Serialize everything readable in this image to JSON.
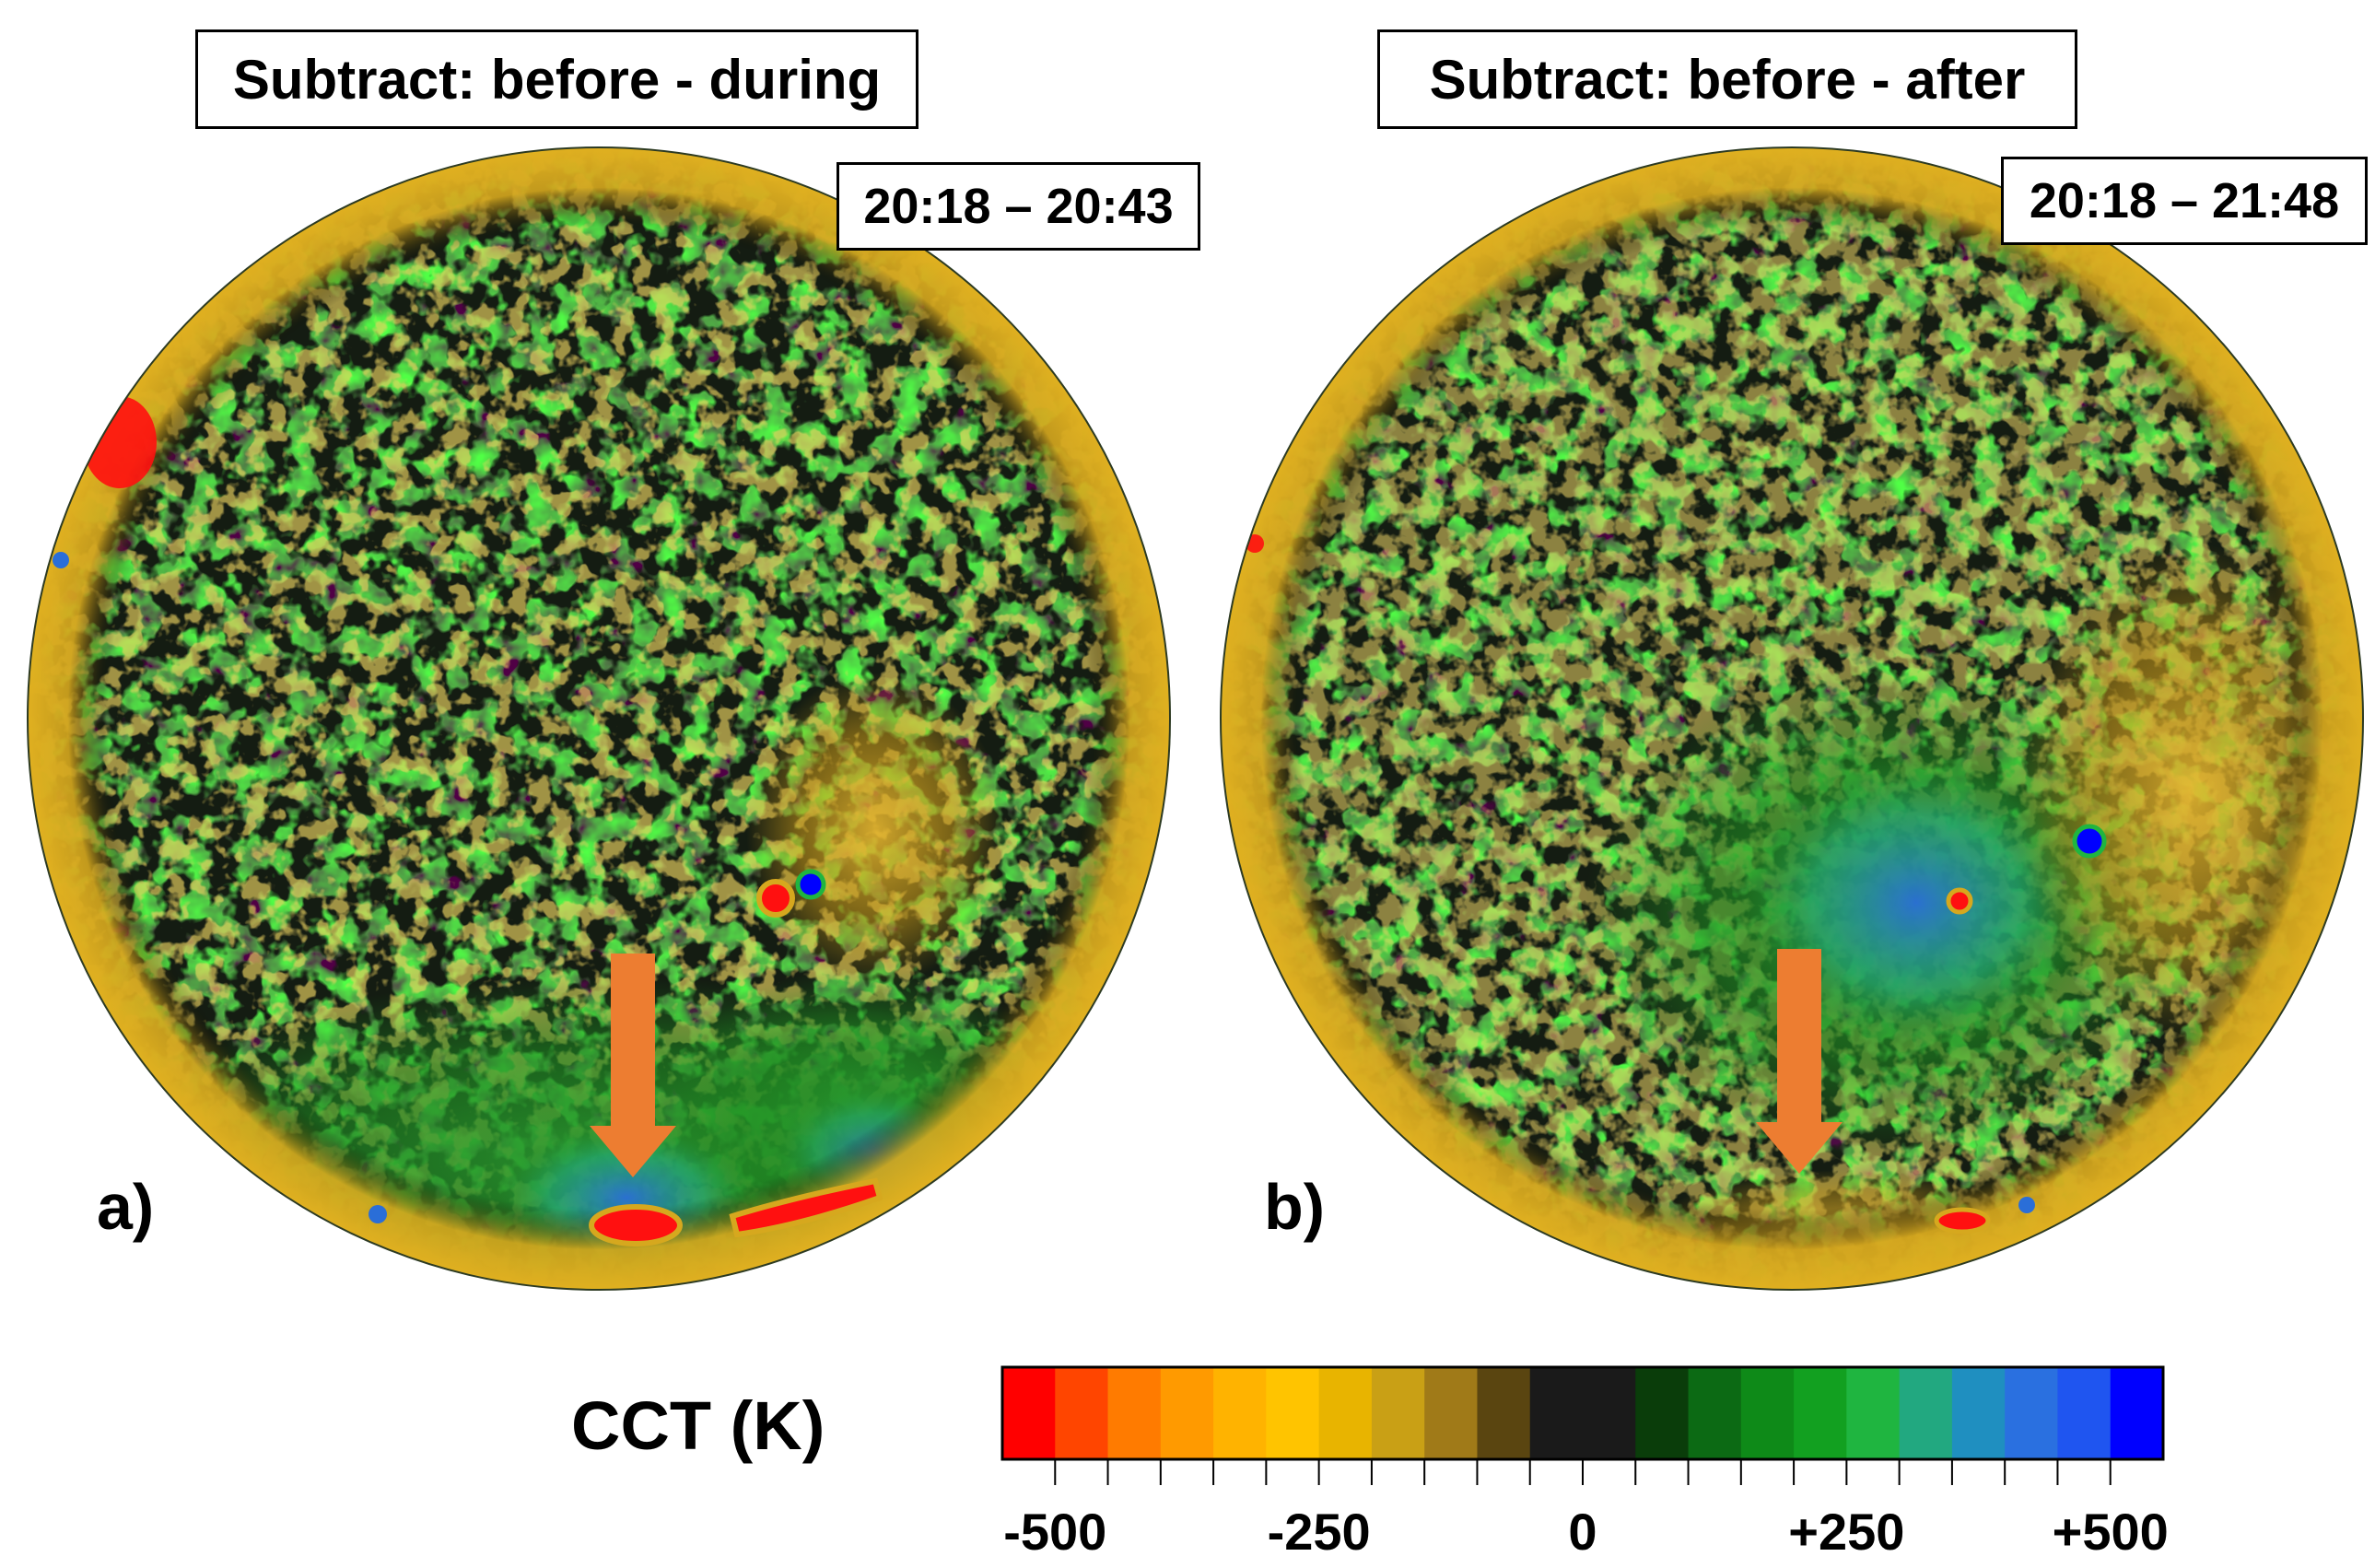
{
  "panels": [
    {
      "title": "Subtract: before - during",
      "time_range": "20:18 – 20:43",
      "label": "a)"
    },
    {
      "title": "Subtract: before - after",
      "time_range": "20:18 – 21:48",
      "label": "b)"
    }
  ],
  "colorbar": {
    "title": "CCT (K)",
    "tick_labels": [
      "-500",
      "-250",
      "0",
      "+250",
      "+500"
    ],
    "range": [
      -500,
      500
    ],
    "colors": [
      "#ff0000",
      "#ff4500",
      "#ff7b00",
      "#ff9a00",
      "#ffb300",
      "#ffc400",
      "#e8b400",
      "#c9a015",
      "#a07a18",
      "#5a4510",
      "#1a1a1a",
      "#1a1a1a",
      "#0a3d0a",
      "#0c6a14",
      "#0e8a18",
      "#12a020",
      "#1fb540",
      "#22a880",
      "#1f8fc0",
      "#2a70e0",
      "#1f55f0",
      "#0000ff"
    ]
  },
  "colors": {
    "arrow": "#ed7d31",
    "field_dark": "#141c12",
    "field_green": "#1f8a22",
    "field_yellow": "#d6a81e",
    "field_blue": "#2a6ed8",
    "field_red": "#ff1010"
  }
}
